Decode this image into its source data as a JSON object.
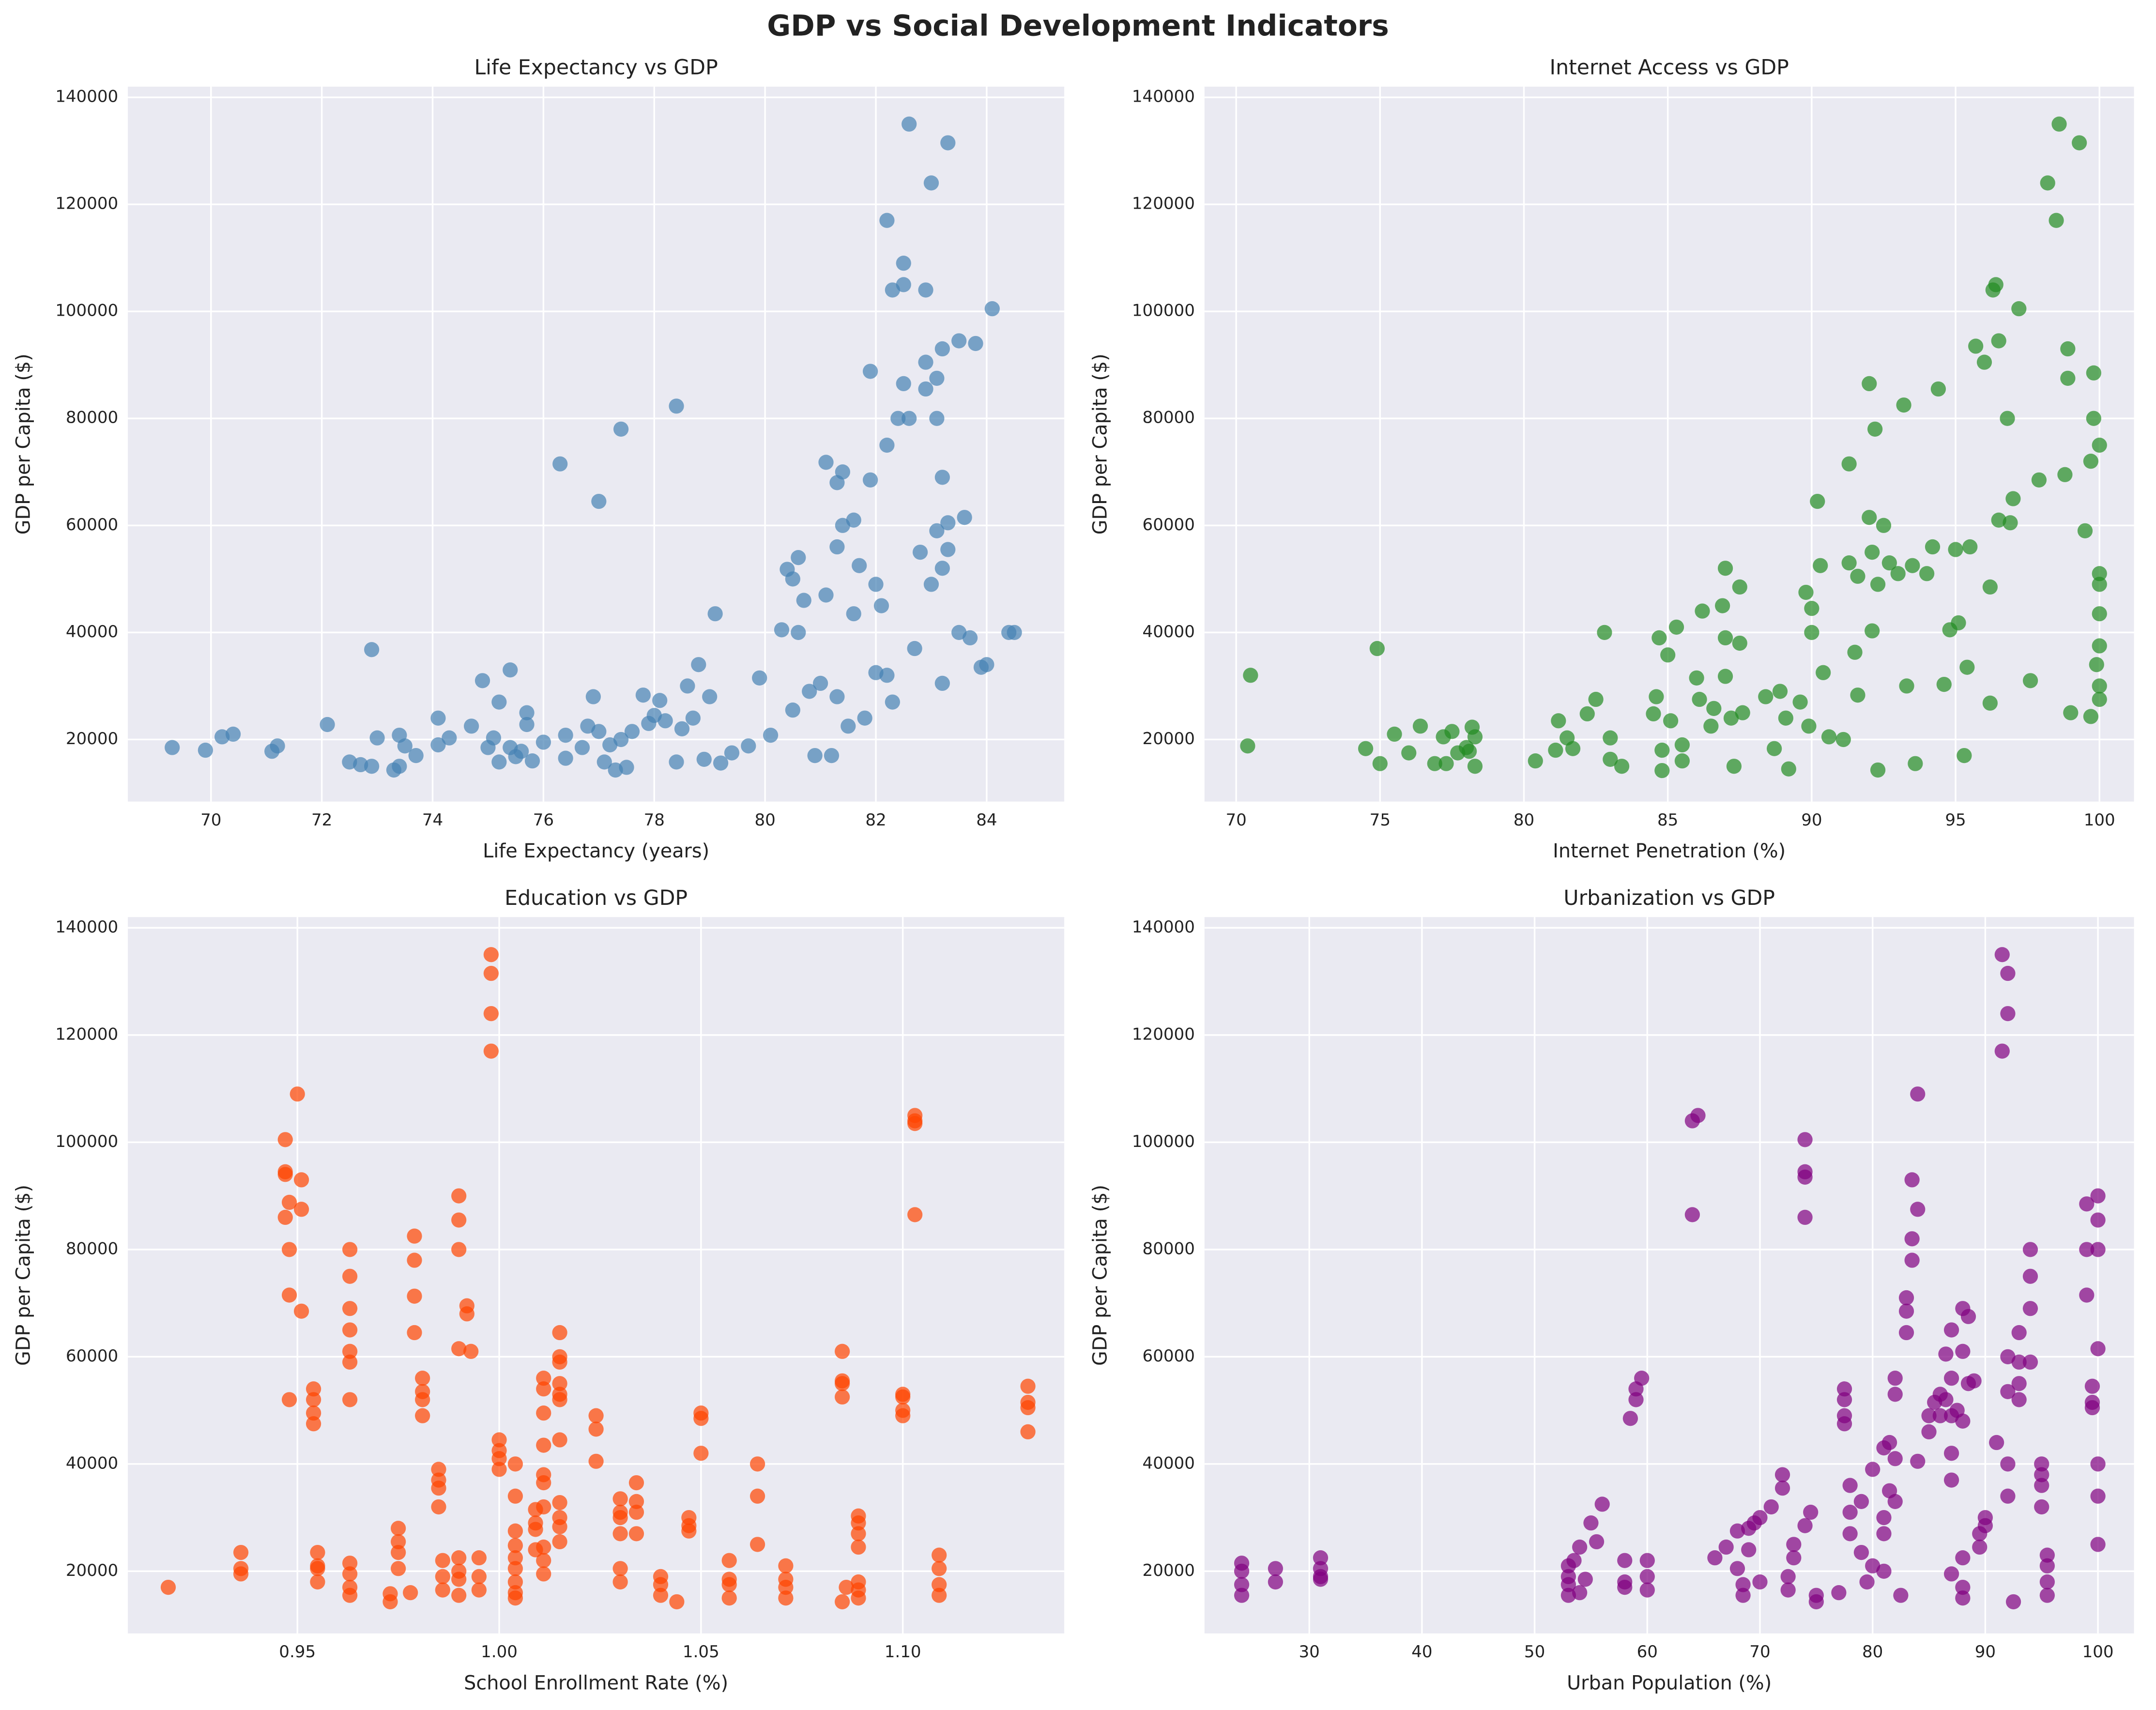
{
  "title": "GDP vs Social Development Indicators",
  "chart_data": [
    {
      "type": "scatter",
      "title": "Life Expectancy vs GDP",
      "xlabel": "Life Expectancy (years)",
      "ylabel": "GDP per Capita ($)",
      "color": "#4682b4",
      "xlim": [
        68.5,
        85.4
      ],
      "xticks": [
        70,
        72,
        74,
        76,
        78,
        80,
        82,
        84
      ],
      "ylim": [
        8400,
        142000
      ],
      "yticks": [
        20000,
        40000,
        60000,
        80000,
        100000,
        120000,
        140000
      ],
      "x": [
        69.3,
        69.9,
        70.2,
        70.4,
        71.1,
        71.2,
        72.1,
        72.5,
        72.7,
        72.9,
        72.9,
        73.0,
        73.3,
        73.4,
        73.4,
        73.5,
        73.7,
        74.1,
        74.1,
        74.3,
        74.7,
        74.9,
        75.0,
        75.1,
        75.2,
        75.2,
        75.4,
        75.4,
        75.5,
        75.6,
        75.7,
        75.7,
        75.8,
        76.0,
        76.3,
        76.4,
        76.4,
        76.7,
        76.8,
        76.9,
        77.0,
        77.0,
        77.1,
        77.2,
        77.3,
        77.4,
        77.4,
        77.5,
        77.6,
        77.8,
        77.9,
        78.0,
        78.1,
        78.2,
        78.4,
        78.4,
        78.5,
        78.6,
        78.7,
        78.8,
        78.9,
        79.0,
        79.1,
        79.2,
        79.4,
        79.7,
        79.9,
        80.1,
        80.3,
        80.4,
        80.5,
        80.5,
        80.6,
        80.6,
        80.7,
        80.8,
        80.9,
        81.0,
        81.1,
        81.1,
        81.2,
        81.3,
        81.3,
        81.3,
        81.4,
        81.4,
        81.5,
        81.6,
        81.6,
        81.7,
        81.8,
        81.9,
        81.9,
        82.0,
        82.0,
        82.1,
        82.2,
        82.2,
        82.2,
        82.3,
        82.3,
        82.4,
        82.5,
        82.5,
        82.5,
        82.6,
        82.6,
        82.7,
        82.8,
        82.9,
        82.9,
        82.9,
        83.0,
        83.0,
        83.1,
        83.1,
        83.1,
        83.2,
        83.2,
        83.2,
        83.2,
        83.3,
        83.3,
        83.3,
        83.5,
        83.5,
        83.6,
        83.7,
        83.8,
        83.9,
        84.0,
        84.1,
        84.4,
        84.5
      ],
      "values": [
        18500,
        18000,
        20500,
        21000,
        17800,
        18800,
        22800,
        15800,
        15300,
        15000,
        36800,
        20300,
        14300,
        20800,
        15000,
        18800,
        17000,
        24000,
        19000,
        20300,
        22500,
        31000,
        18500,
        20300,
        27000,
        15800,
        33000,
        18500,
        16800,
        17800,
        25000,
        22800,
        16000,
        19500,
        71500,
        20800,
        16500,
        18500,
        22500,
        28000,
        64500,
        21500,
        15800,
        19000,
        14300,
        78000,
        20000,
        14800,
        21500,
        28300,
        23000,
        24500,
        27300,
        23500,
        82300,
        15800,
        22000,
        30000,
        24000,
        34000,
        16300,
        28000,
        43500,
        15600,
        17500,
        18800,
        31500,
        20800,
        40500,
        51800,
        50000,
        25500,
        54000,
        40000,
        46000,
        29000,
        17000,
        30500,
        71800,
        47000,
        17000,
        56000,
        68000,
        28000,
        60000,
        70000,
        22500,
        43500,
        61000,
        52500,
        24000,
        88800,
        68500,
        49000,
        32500,
        45000,
        117000,
        75000,
        32000,
        104000,
        27000,
        80000,
        109000,
        105000,
        86500,
        135000,
        80000,
        37000,
        55000,
        104000,
        90500,
        85500,
        124000,
        49000,
        59000,
        80000,
        87500,
        93000,
        69000,
        52000,
        30500,
        131500,
        60500,
        55500,
        40000,
        94500,
        61500,
        39000,
        94000,
        33500,
        34000,
        100500,
        40000,
        40000
      ]
    },
    {
      "type": "scatter",
      "title": "Internet Access vs GDP",
      "xlabel": "Internet Penetration (%)",
      "ylabel": "GDP per Capita ($)",
      "color": "#228b22",
      "xlim": [
        68.9,
        101.2
      ],
      "xticks": [
        70,
        75,
        80,
        85,
        90,
        95,
        100
      ],
      "ylim": [
        8400,
        142000
      ],
      "yticks": [
        20000,
        40000,
        60000,
        80000,
        100000,
        120000,
        140000
      ],
      "x": [
        70.4,
        70.5,
        74.5,
        74.9,
        75.0,
        75.5,
        76.0,
        76.4,
        76.9,
        77.2,
        77.3,
        77.5,
        77.7,
        78.0,
        78.1,
        78.2,
        78.3,
        78.3,
        80.4,
        81.1,
        81.2,
        81.5,
        81.7,
        82.2,
        82.5,
        82.8,
        83.0,
        83.0,
        83.4,
        84.5,
        84.6,
        84.7,
        84.8,
        84.8,
        85.0,
        85.1,
        85.3,
        85.5,
        85.5,
        86.0,
        86.1,
        86.2,
        86.5,
        86.6,
        86.9,
        87.0,
        87.0,
        87.0,
        87.2,
        87.3,
        87.5,
        87.5,
        87.6,
        88.4,
        88.7,
        88.9,
        89.1,
        89.2,
        89.6,
        89.8,
        89.9,
        90.0,
        90.0,
        90.2,
        90.3,
        90.4,
        90.6,
        91.1,
        91.3,
        91.3,
        91.5,
        91.6,
        91.6,
        92.0,
        92.0,
        92.1,
        92.1,
        92.2,
        92.3,
        92.3,
        92.5,
        92.7,
        93.0,
        93.2,
        93.3,
        93.5,
        93.6,
        94.0,
        94.2,
        94.4,
        94.6,
        94.8,
        95.0,
        95.1,
        95.3,
        95.4,
        95.5,
        95.7,
        96.0,
        96.2,
        96.2,
        96.3,
        96.4,
        96.5,
        96.5,
        96.8,
        96.9,
        97.0,
        97.2,
        97.6,
        97.9,
        98.2,
        98.5,
        98.6,
        98.8,
        98.9,
        98.9,
        99.0,
        99.3,
        99.5,
        99.7,
        99.7,
        99.8,
        99.8,
        99.9,
        100,
        100,
        100,
        100,
        100,
        100,
        100
      ],
      "values": [
        18800,
        32000,
        18300,
        37000,
        15500,
        21000,
        17500,
        22500,
        15500,
        20500,
        15500,
        21500,
        17500,
        18500,
        17800,
        22300,
        15000,
        20500,
        16000,
        18000,
        23500,
        20300,
        18300,
        24800,
        27500,
        40000,
        20300,
        16300,
        15000,
        24800,
        28000,
        39000,
        18000,
        14200,
        35800,
        23500,
        41000,
        19000,
        16000,
        31500,
        27500,
        44000,
        22500,
        25800,
        45000,
        52000,
        39000,
        31800,
        24000,
        15000,
        48500,
        38000,
        25000,
        28000,
        18300,
        29000,
        24000,
        14500,
        27000,
        47500,
        22500,
        44500,
        40000,
        64500,
        52500,
        32500,
        20500,
        20000,
        53000,
        71500,
        36300,
        50500,
        28300,
        86500,
        61500,
        55000,
        40300,
        78000,
        14300,
        49000,
        60000,
        53000,
        51000,
        82500,
        30000,
        52500,
        15500,
        51000,
        56000,
        85500,
        30300,
        40500,
        55500,
        41800,
        17000,
        33500,
        56000,
        93500,
        90500,
        48500,
        26800,
        104000,
        105000,
        94500,
        61000,
        80000,
        60500,
        65000,
        100500,
        31000,
        68500,
        124000,
        117000,
        135000,
        69500,
        93000,
        87500,
        25000,
        131500,
        59000,
        72000,
        24300,
        88500,
        80000,
        34000,
        75000,
        49000,
        43500,
        37500,
        30000,
        27500,
        51000
      ]
    },
    {
      "type": "scatter",
      "title": "Education vs GDP",
      "xlabel": "School Enrollment Rate (%)",
      "ylabel": "GDP per Capita ($)",
      "color": "#ff4500",
      "xlim": [
        0.908,
        1.14
      ],
      "xticks": [
        {
          "value": 0.95,
          "label": "0.95"
        },
        {
          "value": 1,
          "label": "1.00"
        },
        {
          "value": 1.05,
          "label": "1.05"
        },
        {
          "value": 1.1,
          "label": "1.10"
        }
      ],
      "ylim": [
        8400,
        142000
      ],
      "yticks": [
        20000,
        40000,
        60000,
        80000,
        100000,
        120000,
        140000
      ],
      "x": [
        0.918,
        0.936,
        0.936,
        0.936,
        0.947,
        0.947,
        0.947,
        0.947,
        0.948,
        0.948,
        0.948,
        0.948,
        0.95,
        0.951,
        0.951,
        0.951,
        0.954,
        0.954,
        0.954,
        0.954,
        0.955,
        0.955,
        0.955,
        0.955,
        0.963,
        0.963,
        0.963,
        0.963,
        0.963,
        0.963,
        0.963,
        0.963,
        0.963,
        0.963,
        0.963,
        0.973,
        0.973,
        0.975,
        0.975,
        0.975,
        0.975,
        0.978,
        0.979,
        0.979,
        0.979,
        0.979,
        0.981,
        0.981,
        0.981,
        0.981,
        0.985,
        0.985,
        0.985,
        0.985,
        0.986,
        0.986,
        0.986,
        0.99,
        0.99,
        0.99,
        0.99,
        0.99,
        0.99,
        0.99,
        0.99,
        0.992,
        0.992,
        0.993,
        0.995,
        0.995,
        0.995,
        0.998,
        0.998,
        0.998,
        0.998,
        1.0,
        1.0,
        1.0,
        1.0,
        1.004,
        1.004,
        1.004,
        1.004,
        1.004,
        1.004,
        1.004,
        1.004,
        1.004,
        1.009,
        1.009,
        1.009,
        1.009,
        1.011,
        1.011,
        1.011,
        1.011,
        1.011,
        1.011,
        1.011,
        1.011,
        1.011,
        1.011,
        1.015,
        1.015,
        1.015,
        1.015,
        1.015,
        1.015,
        1.015,
        1.015,
        1.015,
        1.015,
        1.015,
        1.024,
        1.024,
        1.024,
        1.03,
        1.03,
        1.03,
        1.03,
        1.03,
        1.03,
        1.034,
        1.034,
        1.034,
        1.034,
        1.04,
        1.04,
        1.04,
        1.044,
        1.047,
        1.047,
        1.047,
        1.05,
        1.05,
        1.05,
        1.057,
        1.057,
        1.057,
        1.057,
        1.064,
        1.064,
        1.064,
        1.071,
        1.071,
        1.071,
        1.071,
        1.085,
        1.085,
        1.085,
        1.085,
        1.085,
        1.086,
        1.089,
        1.089,
        1.089,
        1.089,
        1.089,
        1.089,
        1.089,
        1.1,
        1.1,
        1.1,
        1.1,
        1.103,
        1.103,
        1.103,
        1.103,
        1.109,
        1.109,
        1.109,
        1.109,
        1.131,
        1.131,
        1.131,
        1.131
      ],
      "values": [
        17000,
        23500,
        20500,
        19500,
        100500,
        94500,
        94000,
        86000,
        88800,
        80000,
        71500,
        52000,
        109000,
        93000,
        87500,
        68500,
        54000,
        52000,
        49500,
        47500,
        23500,
        21000,
        20500,
        18000,
        80000,
        75000,
        69000,
        65000,
        61000,
        59000,
        52000,
        21500,
        19500,
        17000,
        15500,
        14300,
        15800,
        28000,
        25500,
        23500,
        20500,
        16000,
        82500,
        78000,
        71300,
        64500,
        56000,
        53500,
        52000,
        49000,
        39000,
        37000,
        35500,
        32000,
        22000,
        19000,
        16500,
        90000,
        85500,
        80000,
        61500,
        22500,
        20000,
        18500,
        15500,
        69500,
        68000,
        61000,
        22500,
        19000,
        16500,
        135000,
        131500,
        124000,
        117000,
        44500,
        42500,
        41000,
        39000,
        40000,
        34000,
        27500,
        24800,
        22500,
        20500,
        18000,
        16000,
        15000,
        31500,
        29000,
        27800,
        24000,
        56000,
        54000,
        49500,
        43500,
        38000,
        36500,
        32000,
        24500,
        22000,
        19500,
        64500,
        60000,
        59000,
        55000,
        53000,
        52000,
        44500,
        32800,
        30000,
        28300,
        25500,
        49000,
        46500,
        40500,
        33500,
        31000,
        30000,
        27000,
        20500,
        18000,
        36500,
        33000,
        31000,
        27000,
        19000,
        17500,
        15500,
        14300,
        30000,
        28500,
        27500,
        49500,
        48500,
        42000,
        22000,
        18500,
        17500,
        15000,
        40000,
        34000,
        25000,
        21000,
        18500,
        17000,
        15000,
        61000,
        55500,
        55000,
        52500,
        14300,
        17000,
        30300,
        29000,
        27000,
        24500,
        18000,
        16500,
        15000,
        53000,
        52500,
        50000,
        49000,
        105000,
        104000,
        103500,
        86500,
        23000,
        20500,
        17500,
        15500,
        54500,
        51500,
        50500,
        46000
      ]
    },
    {
      "type": "scatter",
      "title": "Urbanization vs GDP",
      "xlabel": "Urban Population (%)",
      "ylabel": "GDP per Capita ($)",
      "color": "#800080",
      "xlim": [
        20.7,
        103.2
      ],
      "xticks": [
        30,
        40,
        50,
        60,
        70,
        80,
        90,
        100
      ],
      "ylim": [
        8400,
        142000
      ],
      "yticks": [
        20000,
        40000,
        60000,
        80000,
        100000,
        120000,
        140000
      ],
      "x": [
        24,
        24,
        24,
        24,
        27,
        27,
        31,
        31,
        31,
        31,
        53,
        53,
        53,
        53,
        53.5,
        54,
        54,
        54.5,
        55,
        55.5,
        56,
        58,
        58,
        58,
        58.5,
        59,
        59,
        59.5,
        60,
        60,
        60,
        64,
        64,
        64.5,
        66,
        67,
        68,
        68,
        68.5,
        68.5,
        69,
        69,
        69.5,
        70,
        70,
        71,
        72,
        72,
        72.5,
        72.5,
        73,
        73,
        74,
        74,
        74,
        74,
        74,
        74.5,
        75,
        75,
        77,
        77.5,
        77.5,
        77.5,
        77.5,
        78,
        78,
        78,
        79,
        79,
        79.5,
        80,
        80,
        81,
        81,
        81,
        81,
        81.5,
        81.5,
        82,
        82,
        82,
        82,
        82.5,
        83,
        83,
        83,
        83.5,
        83.5,
        83.5,
        84,
        84,
        84,
        85,
        85,
        85.5,
        86,
        86,
        86.5,
        86.5,
        87,
        87,
        87,
        87,
        87,
        87,
        87.5,
        88,
        88,
        88,
        88,
        88,
        88,
        88.5,
        88.5,
        89,
        89.5,
        89.5,
        90,
        90,
        91,
        91.5,
        91.5,
        92,
        92,
        92,
        92,
        92,
        92,
        92.5,
        93,
        93,
        93,
        93,
        94,
        94,
        94,
        94,
        95,
        95,
        95,
        95,
        95.5,
        95.5,
        95.5,
        95.5,
        99,
        99,
        99,
        99.5,
        99.5,
        99.5,
        100,
        100,
        100,
        100,
        100,
        100,
        100
      ],
      "values": [
        21500,
        20000,
        17500,
        15500,
        20500,
        18000,
        22500,
        20500,
        19000,
        18500,
        21000,
        19000,
        17500,
        15500,
        22000,
        24500,
        16000,
        18500,
        29000,
        25500,
        32500,
        22000,
        18000,
        17000,
        48500,
        54000,
        52000,
        56000,
        22000,
        19000,
        16500,
        86500,
        104000,
        105000,
        22500,
        24500,
        27500,
        20500,
        17500,
        15500,
        24000,
        28000,
        29000,
        30000,
        18000,
        32000,
        38000,
        35500,
        19000,
        16500,
        25000,
        22500,
        93500,
        94500,
        86000,
        100500,
        28500,
        31000,
        15500,
        14300,
        16000,
        54000,
        52000,
        49000,
        47500,
        27000,
        36000,
        31000,
        33000,
        23500,
        18000,
        21000,
        39000,
        27000,
        20000,
        30000,
        43000,
        44000,
        35000,
        53000,
        56000,
        41000,
        33000,
        15500,
        71000,
        64500,
        68500,
        82000,
        78000,
        93000,
        109000,
        87500,
        40500,
        46000,
        49000,
        51500,
        53000,
        49000,
        52000,
        60500,
        65000,
        56000,
        49000,
        42000,
        37000,
        19500,
        50000,
        69000,
        61000,
        48000,
        22500,
        17000,
        15000,
        67500,
        55000,
        55500,
        24500,
        27000,
        30000,
        28500,
        44000,
        117000,
        135000,
        124000,
        131500,
        60000,
        53500,
        40000,
        34000,
        14300,
        59000,
        55000,
        52000,
        64500,
        80000,
        75000,
        69000,
        59000,
        40000,
        38000,
        36000,
        32000,
        23000,
        21000,
        18000,
        15500,
        88500,
        80000,
        71500,
        54500,
        51500,
        50500,
        90000,
        85500,
        80000,
        61500,
        40000,
        34000,
        25000
      ]
    }
  ]
}
